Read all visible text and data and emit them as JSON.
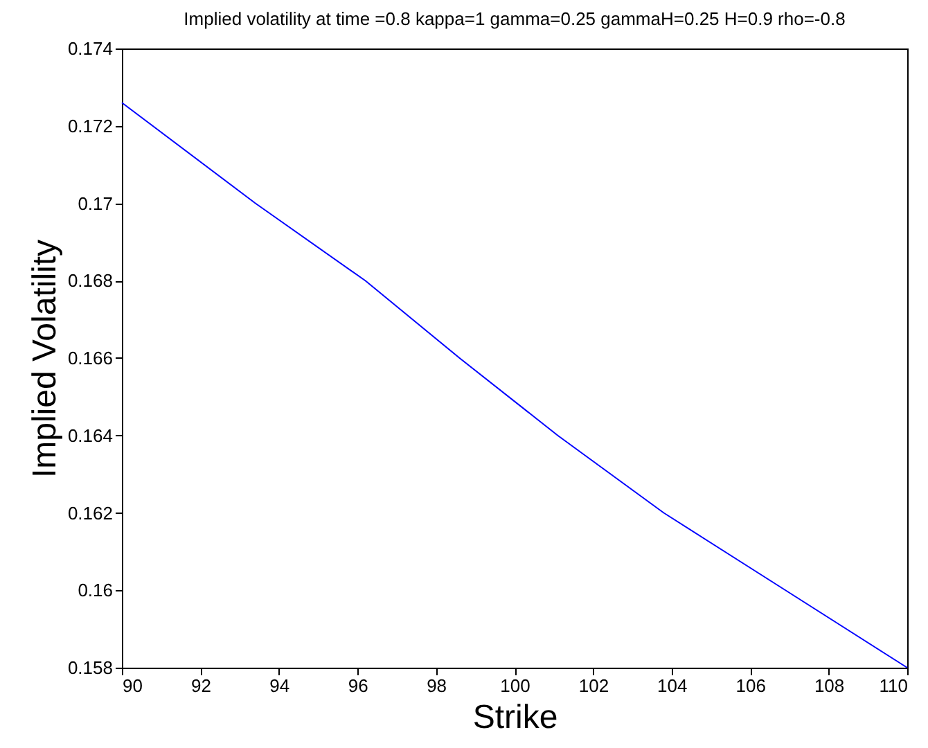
{
  "chart_data": {
    "type": "line",
    "title": "Implied volatility at time =0.8 kappa=1 gamma=0.25 gammaH=0.25 H=0.9 rho=-0.8",
    "xlabel": "Strike",
    "ylabel": "Implied Volatility",
    "x": [
      90,
      93.4,
      96.2,
      98.6,
      101.1,
      103.8,
      106.9,
      110
    ],
    "series": [
      {
        "color": "#0000ff",
        "values": [
          0.1726,
          0.17,
          0.168,
          0.166,
          0.164,
          0.162,
          0.16,
          0.158
        ]
      }
    ],
    "xlim": [
      90,
      110
    ],
    "xticks": [
      90,
      92,
      94,
      96,
      98,
      100,
      102,
      104,
      106,
      108,
      110
    ],
    "ylim": [
      0.158,
      0.174
    ],
    "yticks": [
      0.158,
      0.16,
      0.162,
      0.164,
      0.166,
      0.168,
      0.17,
      0.172,
      0.174
    ],
    "grid": false,
    "marker": "none",
    "line_style": "solid"
  }
}
